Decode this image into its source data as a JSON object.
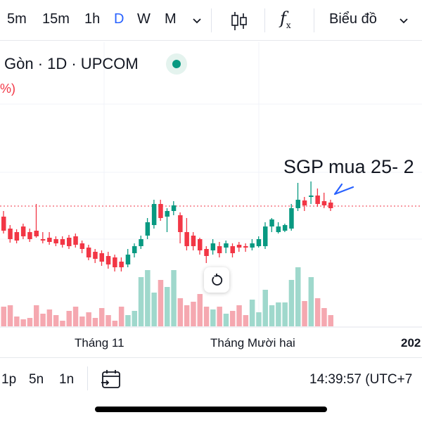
{
  "toolbar": {
    "timeframes": [
      "5m",
      "15m",
      "1h",
      "D",
      "W",
      "M"
    ],
    "active_timeframe": "D",
    "more_icon": "chevron-down-icon",
    "candle_icon": "candlestick-icon",
    "indicator_icon": "fx-icon",
    "indicator_label": "f",
    "indicator_sub": "x",
    "chart_type_label": "Biểu đồ",
    "chart_type_icon": "chevron-down-icon"
  },
  "symbol": {
    "line": "Gòn · 1D · UPCOM",
    "pct": "%)",
    "live_icon": "live-dot-icon"
  },
  "chart": {
    "annotation": "SGP mua 25- 2",
    "x_labels": [
      "Tháng 11",
      "Tháng Mười hai",
      "202"
    ],
    "reset_icon": "reset-icon"
  },
  "bottom": {
    "ranges": [
      "1p",
      "5n",
      "1n"
    ],
    "calendar_icon": "calendar-goto-icon",
    "time": "14:39:57 (UTC+7"
  },
  "colors": {
    "up": "#089981",
    "down": "#f23645",
    "up_volume": "#9fd8cc",
    "down_volume": "#f5a8b0",
    "active_timeframe": "#2962ff",
    "annotation_arrow": "#2962ff"
  }
}
